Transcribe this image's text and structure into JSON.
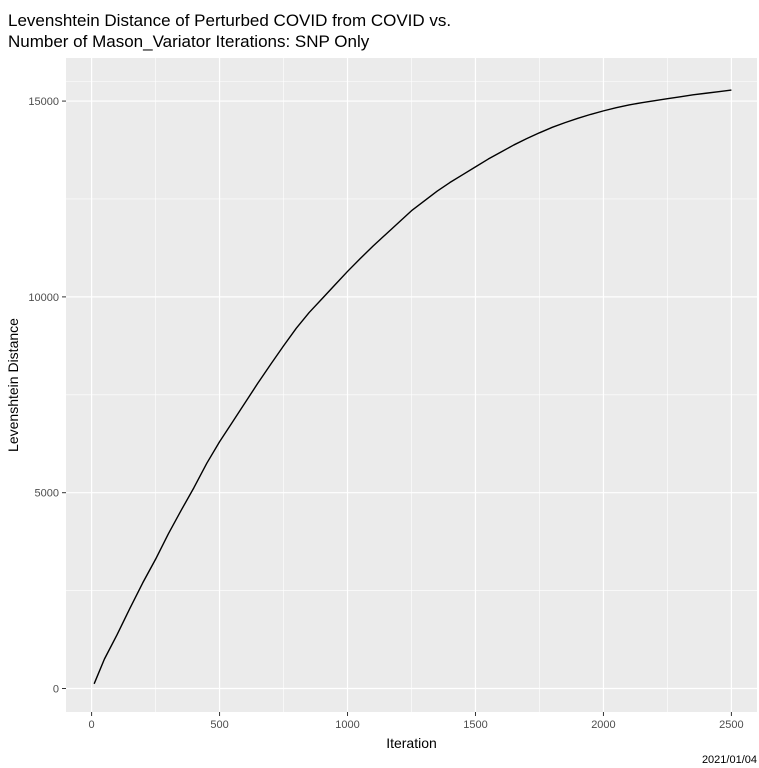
{
  "chart_data": {
    "type": "line",
    "title_line1": "Levenshtein Distance of Perturbed COVID from COVID vs.",
    "title_line2": "Number of Mason_Variator Iterations: SNP Only",
    "xlabel": "Iteration",
    "ylabel": "Levenshtein Distance",
    "caption": "2021/01/04",
    "xlim": [
      -100,
      2600
    ],
    "ylim": [
      -600,
      16100
    ],
    "x_ticks": [
      0,
      500,
      1000,
      1500,
      2000,
      2500
    ],
    "x_tick_labels": [
      "0",
      "500",
      "1000",
      "1500",
      "2000",
      "2500"
    ],
    "y_ticks": [
      0,
      5000,
      10000,
      15000
    ],
    "y_tick_labels": [
      "0",
      "5000",
      "10000",
      "15000"
    ],
    "grid": true,
    "background": "#ebebeb",
    "line_color": "#000000",
    "series": [
      {
        "points": [
          [
            10,
            120
          ],
          [
            50,
            750
          ],
          [
            100,
            1380
          ],
          [
            150,
            2050
          ],
          [
            200,
            2700
          ],
          [
            250,
            3300
          ],
          [
            300,
            3950
          ],
          [
            350,
            4550
          ],
          [
            400,
            5130
          ],
          [
            450,
            5750
          ],
          [
            500,
            6300
          ],
          [
            550,
            6800
          ],
          [
            600,
            7300
          ],
          [
            650,
            7800
          ],
          [
            700,
            8280
          ],
          [
            750,
            8750
          ],
          [
            800,
            9200
          ],
          [
            850,
            9600
          ],
          [
            900,
            9950
          ],
          [
            950,
            10300
          ],
          [
            1000,
            10650
          ],
          [
            1050,
            10980
          ],
          [
            1100,
            11300
          ],
          [
            1150,
            11600
          ],
          [
            1200,
            11900
          ],
          [
            1250,
            12200
          ],
          [
            1300,
            12450
          ],
          [
            1350,
            12700
          ],
          [
            1400,
            12920
          ],
          [
            1450,
            13120
          ],
          [
            1500,
            13320
          ],
          [
            1550,
            13520
          ],
          [
            1600,
            13700
          ],
          [
            1650,
            13880
          ],
          [
            1700,
            14040
          ],
          [
            1750,
            14190
          ],
          [
            1800,
            14330
          ],
          [
            1850,
            14450
          ],
          [
            1900,
            14560
          ],
          [
            1950,
            14660
          ],
          [
            2000,
            14750
          ],
          [
            2050,
            14830
          ],
          [
            2100,
            14900
          ],
          [
            2150,
            14960
          ],
          [
            2200,
            15010
          ],
          [
            2250,
            15060
          ],
          [
            2300,
            15110
          ],
          [
            2350,
            15160
          ],
          [
            2400,
            15200
          ],
          [
            2450,
            15240
          ],
          [
            2500,
            15280
          ]
        ]
      }
    ]
  }
}
